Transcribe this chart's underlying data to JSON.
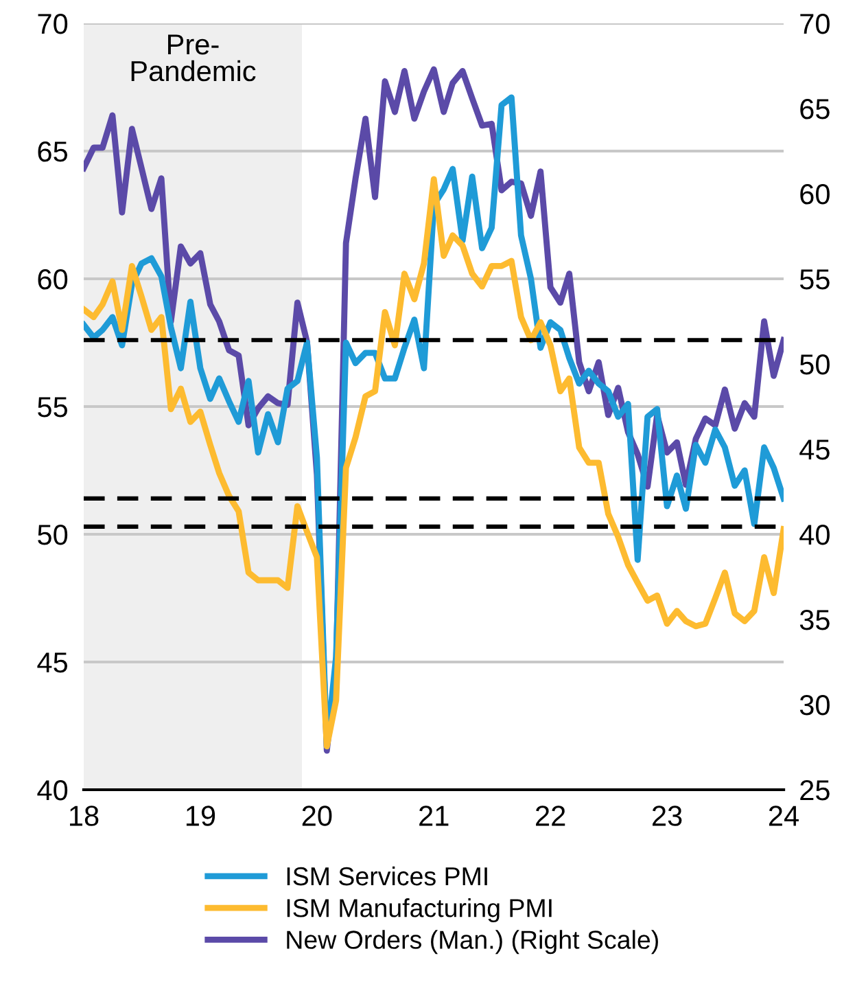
{
  "chart_data": {
    "type": "line",
    "ylabel": null,
    "x": [
      "2018-01",
      "2018-02",
      "2018-03",
      "2018-04",
      "2018-05",
      "2018-06",
      "2018-07",
      "2018-08",
      "2018-09",
      "2018-10",
      "2018-11",
      "2018-12",
      "2019-01",
      "2019-02",
      "2019-03",
      "2019-04",
      "2019-05",
      "2019-06",
      "2019-07",
      "2019-08",
      "2019-09",
      "2019-10",
      "2019-11",
      "2019-12",
      "2020-01",
      "2020-02",
      "2020-03",
      "2020-04",
      "2020-05",
      "2020-06",
      "2020-07",
      "2020-08",
      "2020-09",
      "2020-10",
      "2020-11",
      "2020-12",
      "2021-01",
      "2021-02",
      "2021-03",
      "2021-04",
      "2021-05",
      "2021-06",
      "2021-07",
      "2021-08",
      "2021-09",
      "2021-10",
      "2021-11",
      "2021-12",
      "2022-01",
      "2022-02",
      "2022-03",
      "2022-04",
      "2022-05",
      "2022-06",
      "2022-07",
      "2022-08",
      "2022-09",
      "2022-10",
      "2022-11",
      "2022-12",
      "2023-01",
      "2023-02",
      "2023-03",
      "2023-04",
      "2023-05",
      "2023-06",
      "2023-07",
      "2023-08",
      "2023-09",
      "2023-10",
      "2023-11",
      "2023-12",
      "2024-01"
    ],
    "series": [
      {
        "name": "ISM Services PMI",
        "color": "#1f9bd7",
        "values": [
          58.2,
          57.7,
          58.0,
          58.5,
          57.4,
          59.8,
          60.6,
          60.8,
          60.1,
          58.1,
          56.5,
          59.1,
          56.5,
          55.3,
          56.1,
          55.2,
          54.4,
          56.0,
          53.2,
          54.7,
          53.6,
          55.7,
          56.0,
          57.5,
          53.0,
          41.7,
          45.2,
          57.5,
          56.7,
          57.1,
          57.1,
          56.1,
          56.1,
          57.3,
          58.4,
          56.5,
          62.9,
          63.5,
          64.3,
          61.5,
          64.0,
          61.2,
          62.0,
          66.8,
          67.1,
          61.7,
          60.0,
          57.3,
          58.3,
          58.0,
          56.9,
          55.9,
          56.4,
          55.9,
          55.6,
          54.6,
          55.1,
          49.0,
          54.6,
          54.9,
          51.1,
          52.3,
          51.0,
          53.5,
          52.8,
          54.1,
          53.4,
          51.9,
          52.5,
          50.4,
          53.4,
          52.6,
          51.4
        ]
      },
      {
        "name": "ISM Manufacturing PMI",
        "color": "#fdbb30",
        "values": [
          58.8,
          58.5,
          59.0,
          59.9,
          58.0,
          60.5,
          59.3,
          58.0,
          58.5,
          54.9,
          55.7,
          54.4,
          54.8,
          53.5,
          52.4,
          51.5,
          50.9,
          48.5,
          48.2,
          48.2,
          48.2,
          47.9,
          51.1,
          50.1,
          49.1,
          41.7,
          43.5,
          52.6,
          53.8,
          55.4,
          55.6,
          58.7,
          57.4,
          60.2,
          59.2,
          60.6,
          63.9,
          60.9,
          61.7,
          61.3,
          60.2,
          59.7,
          60.5,
          60.5,
          60.7,
          58.5,
          57.6,
          58.3,
          57.4,
          55.6,
          56.1,
          53.4,
          52.8,
          52.8,
          50.8,
          49.9,
          48.8,
          48.1,
          47.4,
          47.6,
          46.5,
          47.0,
          46.6,
          46.4,
          46.5,
          47.5,
          48.5,
          46.9,
          46.6,
          47.0,
          49.1,
          47.7,
          50.2
        ]
      },
      {
        "name": "New Orders (Man.) (Right Scale)",
        "color": "#5b4aa8",
        "axis": "y2",
        "values": [
          61.5,
          62.7,
          62.7,
          64.6,
          58.9,
          63.8,
          61.5,
          59.1,
          60.9,
          52.5,
          56.9,
          55.9,
          56.5,
          53.5,
          52.5,
          50.8,
          50.5,
          46.4,
          47.4,
          48.1,
          47.7,
          47.6,
          53.6,
          51.3,
          43.5,
          27.3,
          32.1,
          57.1,
          60.9,
          64.4,
          59.8,
          66.6,
          64.8,
          67.2,
          64.4,
          66.0,
          67.3,
          64.8,
          66.5,
          67.2,
          65.6,
          64.0,
          64.1,
          60.2,
          60.7,
          60.6,
          58.7,
          61.3,
          54.5,
          53.6,
          55.3,
          50.1,
          48.4,
          50.1,
          47.0,
          48.6,
          46.0,
          44.7,
          42.8,
          47.0,
          44.8,
          45.4,
          42.9,
          45.6,
          46.8,
          46.4,
          48.5,
          46.2,
          47.7,
          46.9,
          52.5,
          49.3,
          51.4
        ]
      }
    ],
    "xlim": [
      "2018-01",
      "2024-01"
    ],
    "xticks": [
      {
        "value": "2018-01",
        "label": "18"
      },
      {
        "value": "2019-01",
        "label": "19"
      },
      {
        "value": "2020-01",
        "label": "20"
      },
      {
        "value": "2021-01",
        "label": "21"
      },
      {
        "value": "2022-01",
        "label": "22"
      },
      {
        "value": "2023-01",
        "label": "23"
      },
      {
        "value": "2024-01",
        "label": "24"
      }
    ],
    "ylim": [
      40,
      70
    ],
    "yticks": [
      40,
      45,
      50,
      55,
      60,
      65,
      70
    ],
    "y2lim": [
      25,
      70
    ],
    "y2ticks": [
      25,
      30,
      35,
      40,
      45,
      50,
      55,
      60,
      65,
      70
    ],
    "ref_lines": [
      {
        "axis": "y",
        "value": 57.6,
        "color": "#000000",
        "line_style": "dashed"
      },
      {
        "axis": "y",
        "value": 51.4,
        "color": "#000000",
        "line_style": "dashed"
      },
      {
        "axis": "y",
        "value": 50.3,
        "color": "#000000",
        "line_style": "dashed"
      }
    ],
    "bands": [
      {
        "axis": "x",
        "from": "2018-01",
        "to": "2019-11-15",
        "label": "Pre-\nPandemic",
        "color": "#efefef"
      }
    ],
    "grid": "y",
    "legend": "bottom",
    "marker": "none",
    "line_style": "solid"
  }
}
